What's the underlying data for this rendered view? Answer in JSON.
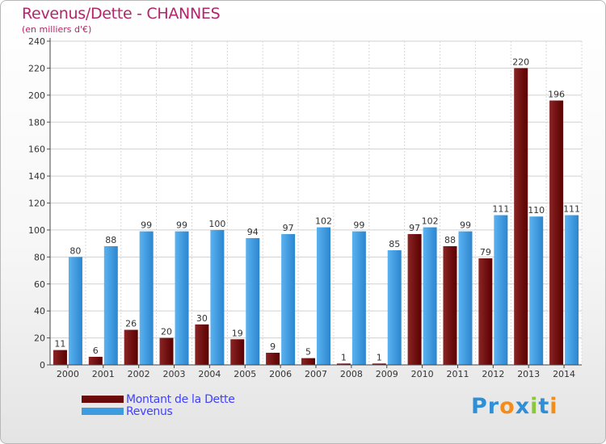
{
  "header": {
    "title": "Revenus/Dette - CHANNES",
    "subtitle": "(en milliers d'€)"
  },
  "legend": {
    "items": [
      {
        "label": "Montant de la Dette",
        "color": "#6b0a0a"
      },
      {
        "label": "Revenus",
        "color": "#3d9be0"
      }
    ]
  },
  "logo": {
    "letters": [
      {
        "ch": "P",
        "color": "#2f8fd6"
      },
      {
        "ch": "r",
        "color": "#2f8fd6"
      },
      {
        "ch": "o",
        "color": "#f28c1b"
      },
      {
        "ch": "x",
        "color": "#2f8fd6"
      },
      {
        "ch": "i",
        "color": "#8cc63f"
      },
      {
        "ch": "t",
        "color": "#2f8fd6"
      },
      {
        "ch": "i",
        "color": "#f28c1b"
      }
    ]
  },
  "chart_data": {
    "type": "bar",
    "categories": [
      "2000",
      "2001",
      "2002",
      "2003",
      "2004",
      "2005",
      "2006",
      "2007",
      "2008",
      "2009",
      "2010",
      "2011",
      "2012",
      "2013",
      "2014"
    ],
    "series": [
      {
        "name": "Montant de la Dette",
        "color": "#6b0a0a",
        "values": [
          11,
          6,
          26,
          20,
          30,
          19,
          9,
          5,
          1,
          1,
          97,
          88,
          79,
          220,
          196
        ]
      },
      {
        "name": "Revenus",
        "color": "#3d9be0",
        "values": [
          80,
          88,
          99,
          99,
          100,
          94,
          97,
          102,
          99,
          85,
          102,
          99,
          111,
          110,
          111
        ]
      }
    ],
    "ylim": [
      0,
      240
    ],
    "yticks": [
      0,
      20,
      40,
      60,
      80,
      100,
      120,
      140,
      160,
      180,
      200,
      220,
      240
    ],
    "grid": true
  }
}
